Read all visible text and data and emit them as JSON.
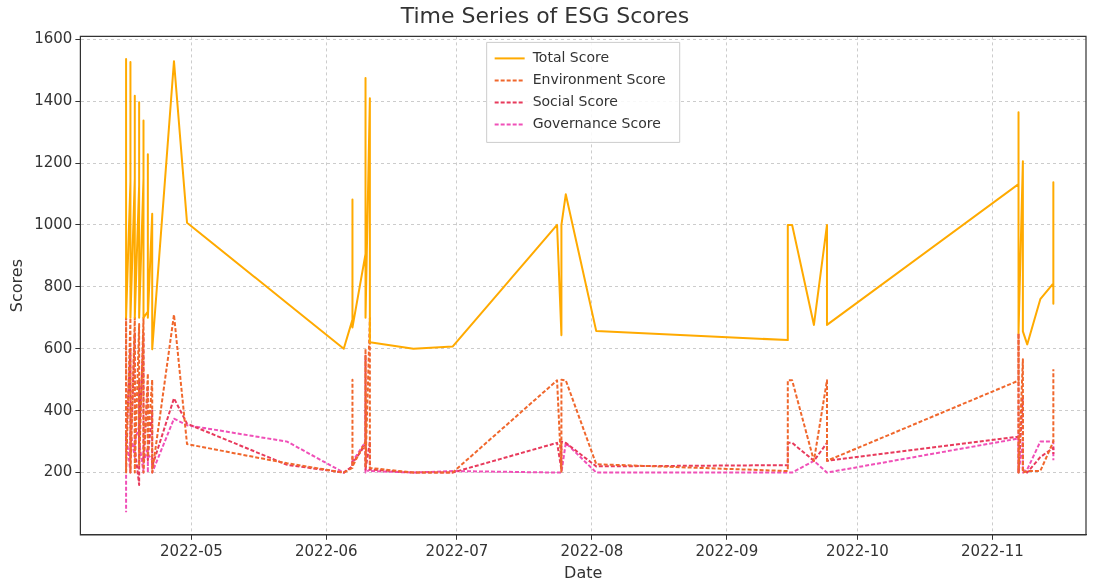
{
  "chart_data": {
    "type": "line",
    "title": "Time Series of ESG Scores",
    "xlabel": "Date",
    "ylabel": "Scores",
    "x": [
      "2022-04-16",
      "2022-04-16",
      "2022-04-16",
      "2022-04-17",
      "2022-04-17",
      "2022-04-17",
      "2022-04-18",
      "2022-04-18",
      "2022-04-18",
      "2022-04-19",
      "2022-04-19",
      "2022-04-19",
      "2022-04-20",
      "2022-04-20",
      "2022-04-20",
      "2022-04-21",
      "2022-04-21",
      "2022-04-21",
      "2022-04-22",
      "2022-04-22",
      "2022-04-27",
      "2022-04-30",
      "2022-05-23",
      "2022-06-05",
      "2022-06-07",
      "2022-06-07",
      "2022-06-07",
      "2022-06-10",
      "2022-06-10",
      "2022-06-10",
      "2022-06-11",
      "2022-06-11",
      "2022-06-21",
      "2022-06-30",
      "2022-07-24",
      "2022-07-25",
      "2022-07-25",
      "2022-07-26",
      "2022-08-02",
      "2022-09-15",
      "2022-09-15",
      "2022-09-16",
      "2022-09-21",
      "2022-09-24",
      "2022-09-24",
      "2022-11-07",
      "2022-11-07",
      "2022-11-07",
      "2022-11-08",
      "2022-11-08",
      "2022-11-09",
      "2022-11-12",
      "2022-11-15",
      "2022-11-15",
      "2022-11-15"
    ],
    "series": [
      {
        "name": "Total Score",
        "color": "#ffaa00",
        "line_style": "solid",
        "values": [
          1140,
          1536,
          700,
          1140,
          1526,
          700,
          1150,
          1417,
          700,
          1130,
          1396,
          700,
          1150,
          1337,
          700,
          720,
          1228,
          700,
          1036,
          598,
          1529,
          1007,
          747,
          600,
          694,
          1082,
          669,
          906,
          1475,
          700,
          1409,
          621,
          600,
          607,
          1000,
          644,
          1000,
          1099,
          657,
          628,
          1000,
          1000,
          677,
          1000,
          677,
          1132,
          1364,
          651,
          1206,
          656,
          614,
          760,
          811,
          1138,
          745
        ]
      },
      {
        "name": "Environment Score",
        "color": "#f0672c",
        "line_style": "dashed",
        "values": [
          500,
          700,
          200,
          700,
          500,
          200,
          700,
          500,
          200,
          680,
          500,
          220,
          700,
          520,
          200,
          520,
          250,
          300,
          500,
          200,
          710,
          292,
          230,
          200,
          215,
          500,
          220,
          300,
          600,
          220,
          699,
          215,
          200,
          200,
          498,
          200,
          500,
          498,
          227,
          205,
          498,
          498,
          238,
          498,
          238,
          497,
          650,
          200,
          566,
          200,
          205,
          205,
          300,
          400,
          534
        ]
      },
      {
        "name": "Social Score",
        "color": "#e83a5c",
        "line_style": "dashed",
        "values": [
          520,
          700,
          300,
          600,
          400,
          250,
          650,
          350,
          280,
          160,
          500,
          300,
          650,
          450,
          240,
          480,
          240,
          250,
          400,
          220,
          440,
          358,
          225,
          200,
          220,
          250,
          230,
          290,
          577,
          210,
          300,
          210,
          200,
          200,
          296,
          210,
          300,
          296,
          220,
          224,
          296,
          296,
          238,
          296,
          238,
          316,
          651,
          200,
          450,
          210,
          200,
          250,
          280,
          270,
          260
        ]
      },
      {
        "name": "Governance Score",
        "color": "#f050b8",
        "line_style": "dashed",
        "values": [
          72,
          300,
          330,
          200,
          300,
          330,
          250,
          300,
          300,
          350,
          280,
          300,
          200,
          250,
          230,
          280,
          200,
          260,
          240,
          200,
          374,
          353,
          300,
          200,
          220,
          240,
          235,
          300,
          400,
          200,
          210,
          205,
          200,
          205,
          200,
          200,
          200,
          296,
          200,
          200,
          200,
          200,
          238,
          200,
          200,
          310,
          320,
          200,
          300,
          200,
          210,
          300,
          300,
          270,
          240
        ]
      }
    ],
    "xlim": [
      "2022-04-05T12:00",
      "2022-11-22T12:00"
    ],
    "xticks": [
      "2022-05",
      "2022-06",
      "2022-07",
      "2022-08",
      "2022-09",
      "2022-10",
      "2022-11"
    ],
    "ylim": [
      -1,
      1609
    ],
    "yticks": [
      200,
      400,
      600,
      800,
      1000,
      1200,
      1400,
      1600
    ],
    "grid": true,
    "legend": "top",
    "marker": "none"
  }
}
